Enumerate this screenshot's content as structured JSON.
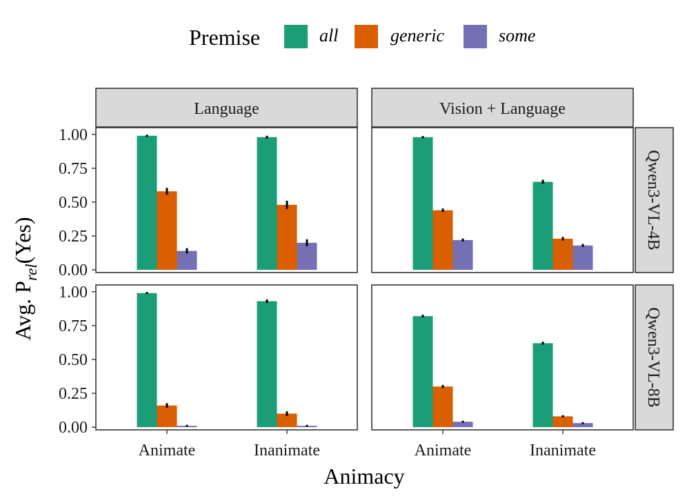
{
  "chart_data": {
    "type": "bar",
    "layout": "faceted grid",
    "legend": {
      "title": "Premise",
      "entries": [
        {
          "label": "all",
          "color": "#1b9e77"
        },
        {
          "label": "generic",
          "color": "#d95f02"
        },
        {
          "label": "some",
          "color": "#7570b3"
        }
      ],
      "placement": "top"
    },
    "xlabel": "Animacy",
    "ylabel_prefix": "Avg. P",
    "ylabel_sub": "rel",
    "ylabel_suffix": "(Yes)",
    "categories": [
      "Animate",
      "Inanimate"
    ],
    "yticks": [
      "0.00",
      "0.25",
      "0.50",
      "0.75",
      "1.00"
    ],
    "ylim": [
      0,
      1.05
    ],
    "columns": [
      "Language",
      "Vision + Language"
    ],
    "rows": [
      "Qwen3-VL-4B",
      "Qwen3-VL-8B"
    ],
    "panels": [
      {
        "row": "Qwen3-VL-4B",
        "column": "Language",
        "series": [
          {
            "name": "all",
            "values": [
              0.99,
              0.98
            ],
            "err": [
              0.003,
              0.005
            ]
          },
          {
            "name": "generic",
            "values": [
              0.58,
              0.48
            ],
            "err": [
              0.02,
              0.025
            ]
          },
          {
            "name": "some",
            "values": [
              0.14,
              0.2
            ],
            "err": [
              0.015,
              0.02
            ]
          }
        ]
      },
      {
        "row": "Qwen3-VL-4B",
        "column": "Vision + Language",
        "series": [
          {
            "name": "all",
            "values": [
              0.98,
              0.65
            ],
            "err": [
              0.003,
              0.01
            ]
          },
          {
            "name": "generic",
            "values": [
              0.44,
              0.23
            ],
            "err": [
              0.008,
              0.008
            ]
          },
          {
            "name": "some",
            "values": [
              0.22,
              0.18
            ],
            "err": [
              0.006,
              0.006
            ]
          }
        ]
      },
      {
        "row": "Qwen3-VL-8B",
        "column": "Language",
        "series": [
          {
            "name": "all",
            "values": [
              0.99,
              0.93
            ],
            "err": [
              0.003,
              0.008
            ]
          },
          {
            "name": "generic",
            "values": [
              0.16,
              0.1
            ],
            "err": [
              0.012,
              0.012
            ]
          },
          {
            "name": "some",
            "values": [
              0.01,
              0.01
            ],
            "err": [
              0.002,
              0.002
            ]
          }
        ]
      },
      {
        "row": "Qwen3-VL-8B",
        "column": "Vision + Language",
        "series": [
          {
            "name": "all",
            "values": [
              0.82,
              0.62
            ],
            "err": [
              0.005,
              0.006
            ]
          },
          {
            "name": "generic",
            "values": [
              0.3,
              0.08
            ],
            "err": [
              0.006,
              0.003
            ]
          },
          {
            "name": "some",
            "values": [
              0.04,
              0.03
            ],
            "err": [
              0.002,
              0.002
            ]
          }
        ]
      }
    ]
  }
}
